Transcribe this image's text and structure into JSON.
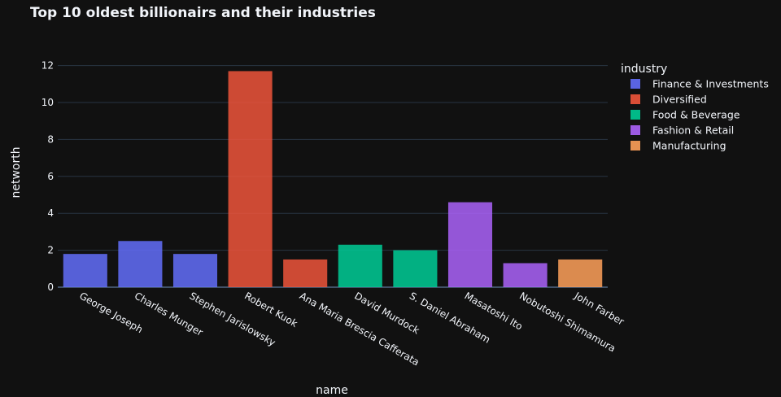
{
  "chart_data": {
    "type": "bar",
    "title": "Top 10 oldest billionairs and their industries",
    "xlabel": "name",
    "ylabel": "networth",
    "ylim": [
      0,
      12.6
    ],
    "yticks": [
      0,
      2,
      4,
      6,
      8,
      10,
      12
    ],
    "grid": true,
    "legend": {
      "title": "industry",
      "placement": "right",
      "entries": [
        {
          "name": "Finance & Investments",
          "color": "#636efa"
        },
        {
          "name": "Diversified",
          "color": "#ef553b"
        },
        {
          "name": "Food & Beverage",
          "color": "#00cc96"
        },
        {
          "name": "Fashion & Retail",
          "color": "#ab63fa"
        },
        {
          "name": "Manufacturing",
          "color": "#ffa15a"
        }
      ]
    },
    "categories": [
      "George Joseph",
      "Charles Munger",
      "Stephen Jarislowsky",
      "Robert Kuok",
      "Ana Maria Brescia Cafferata",
      "David Murdock",
      "S. Daniel Abraham",
      "Masatoshi Ito",
      "Nobutoshi Shimamura",
      "John Farber"
    ],
    "values": [
      1.8,
      2.5,
      1.8,
      11.7,
      1.5,
      2.3,
      2.0,
      4.6,
      1.3,
      1.5
    ],
    "industries": [
      "Finance & Investments",
      "Finance & Investments",
      "Finance & Investments",
      "Diversified",
      "Diversified",
      "Food & Beverage",
      "Food & Beverage",
      "Fashion & Retail",
      "Fashion & Retail",
      "Manufacturing"
    ]
  }
}
